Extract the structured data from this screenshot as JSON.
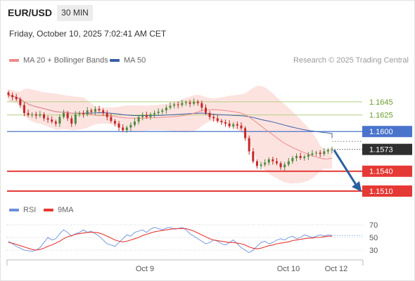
{
  "header": {
    "symbol": "EUR/USD",
    "timeframe": "30 MIN",
    "datetime": "Friday, October 10, 2025 7:02:41 AM CET"
  },
  "legend": {
    "ma20_label": "MA 20 + Bollinger Bands",
    "ma50_label": "MA 50",
    "rsi_label": "RSI",
    "ma9_label": "9MA"
  },
  "credit": "Research © 2025 Trading Central",
  "colors": {
    "ma20": "#f08a8a",
    "ma50": "#3b5fa8",
    "bollinger_fill": "#fbd9d6",
    "up_candle": "#4c8a3c",
    "down_candle": "#c62828",
    "resistance_green": "#b5cf7e",
    "pivot_blue": "#4a74cc",
    "support_red": "#e53935",
    "price_dark": "#2f2f2f",
    "arrow": "#2d5f9e",
    "rsi_line": "#6a8fdc",
    "rsi_ma": "#e53935"
  },
  "chart_data": [
    {
      "type": "candlestick",
      "title": "EUR/USD 30 MIN",
      "x_ticks": [
        "Oct 9",
        "Oct 10",
        "Oct 12"
      ],
      "last_price": 1.1573,
      "levels": [
        {
          "value": 1.1645,
          "label": "1.1645",
          "kind": "resistance",
          "color": "#b5cf7e"
        },
        {
          "value": 1.1625,
          "label": "1.1625",
          "kind": "resistance",
          "color": "#b5cf7e"
        },
        {
          "value": 1.16,
          "label": "1.1600",
          "kind": "pivot",
          "color": "#4a74cc"
        },
        {
          "value": 1.1573,
          "label": "1.1573",
          "kind": "last",
          "color": "#2f2f2f"
        },
        {
          "value": 1.154,
          "label": "1.1540",
          "kind": "support",
          "color": "#e53935"
        },
        {
          "value": 1.151,
          "label": "1.1510",
          "kind": "support",
          "color": "#e53935"
        }
      ],
      "forecast": {
        "from": 1.1573,
        "to": 1.151,
        "direction": "down"
      },
      "ohlc_close": [
        1.1655,
        1.1652,
        1.1649,
        1.164,
        1.1628,
        1.1625,
        1.1626,
        1.1624,
        1.1626,
        1.162,
        1.1618,
        1.1615,
        1.1612,
        1.1622,
        1.1628,
        1.162,
        1.1612,
        1.1626,
        1.1628,
        1.1626,
        1.1632,
        1.163,
        1.1634,
        1.1632,
        1.1628,
        1.1622,
        1.1616,
        1.1612,
        1.1606,
        1.1602,
        1.1606,
        1.161,
        1.1615,
        1.1622,
        1.1625,
        1.1622,
        1.1626,
        1.1628,
        1.163,
        1.1632,
        1.1636,
        1.1639,
        1.1641,
        1.164,
        1.1643,
        1.1644,
        1.1642,
        1.1645,
        1.1643,
        1.1636,
        1.1628,
        1.1622,
        1.162,
        1.1616,
        1.1614,
        1.1612,
        1.1608,
        1.1611,
        1.1609,
        1.1605,
        1.159,
        1.157,
        1.1555,
        1.1548,
        1.155,
        1.1553,
        1.1558,
        1.1555,
        1.1552,
        1.1546,
        1.155,
        1.1555,
        1.156,
        1.1563,
        1.156,
        1.1562,
        1.1565,
        1.1567,
        1.1568,
        1.1566,
        1.157,
        1.1572,
        1.1573
      ]
    },
    {
      "type": "line",
      "title": "RSI",
      "y_ticks": [
        70,
        50,
        30
      ],
      "ylim": [
        20,
        80
      ],
      "series": [
        {
          "name": "RSI",
          "values": [
            44,
            40,
            36,
            33,
            30,
            29,
            28,
            30,
            34,
            42,
            50,
            46,
            48,
            56,
            62,
            58,
            52,
            56,
            58,
            62,
            58,
            60,
            56,
            52,
            46,
            40,
            38,
            36,
            42,
            48,
            54,
            52,
            58,
            60,
            62,
            58,
            63,
            66,
            64,
            62,
            65,
            66,
            63,
            64,
            66,
            62,
            56,
            52,
            48,
            44,
            40,
            42,
            46,
            44,
            40,
            38,
            42,
            46,
            40,
            34,
            30,
            26,
            30,
            36,
            42,
            44,
            40,
            42,
            46,
            48,
            46,
            50,
            52,
            48,
            50,
            54,
            52,
            50,
            52,
            54,
            52,
            54,
            53
          ]
        },
        {
          "name": "9MA",
          "values": [
            42,
            41,
            39,
            37,
            35,
            33,
            31,
            30,
            31,
            33,
            36,
            38,
            41,
            44,
            48,
            51,
            53,
            55,
            56,
            57,
            58,
            58,
            58,
            57,
            55,
            52,
            49,
            46,
            44,
            43,
            44,
            46,
            48,
            50,
            53,
            55,
            57,
            59,
            60,
            61,
            62,
            63,
            64,
            64,
            64,
            64,
            62,
            60,
            57,
            54,
            51,
            48,
            46,
            45,
            44,
            43,
            42,
            42,
            41,
            40,
            38,
            35,
            33,
            32,
            33,
            35,
            37,
            38,
            40,
            41,
            42,
            43,
            45,
            46,
            47,
            48,
            49,
            49,
            50,
            50,
            51,
            52,
            52
          ]
        }
      ]
    }
  ]
}
